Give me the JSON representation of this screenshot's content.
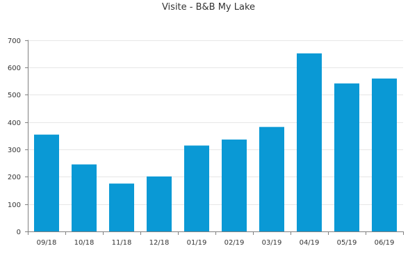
{
  "chart_data": {
    "type": "bar",
    "title": "Visite - B&B My Lake",
    "xlabel": "",
    "ylabel": "",
    "categories": [
      "09/18",
      "10/18",
      "11/18",
      "12/18",
      "01/19",
      "02/19",
      "03/19",
      "04/19",
      "05/19",
      "06/19"
    ],
    "values": [
      354,
      245,
      175,
      201,
      314,
      336,
      382,
      651,
      541,
      559
    ],
    "ylim": [
      0,
      700
    ],
    "yticks": [
      0,
      100,
      200,
      300,
      400,
      500,
      600,
      700
    ],
    "grid": true,
    "legend": "none",
    "bar_color": "#0a99d5",
    "grid_color": "#e6e6e6",
    "axis_color": "#808080"
  }
}
